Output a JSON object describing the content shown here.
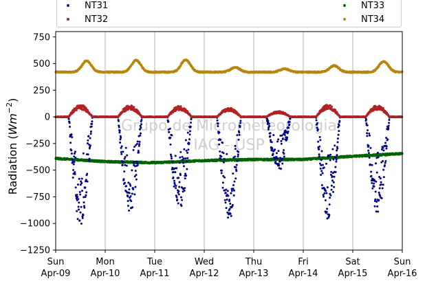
{
  "chart_data": {
    "type": "scatter",
    "title": "",
    "xlabel": "",
    "ylabel": "Radiation ($Wm^{-2}$)",
    "ylim": [
      -1250,
      800
    ],
    "yticks": [
      -1250,
      -1000,
      -750,
      -500,
      -250,
      0,
      250,
      500,
      750
    ],
    "xlim": [
      "2017-04-09",
      "2017-04-16"
    ],
    "xticks": [
      {
        "day": "Sun",
        "date": "Apr-09"
      },
      {
        "day": "Mon",
        "date": "Apr-10"
      },
      {
        "day": "Tue",
        "date": "Apr-11"
      },
      {
        "day": "Wed",
        "date": "Apr-12"
      },
      {
        "day": "Thu",
        "date": "Apr-13"
      },
      {
        "day": "Fri",
        "date": "Apr-14"
      },
      {
        "day": "Sat",
        "date": "Apr-15"
      },
      {
        "day": "Sun",
        "date": "Apr-16"
      }
    ],
    "grid": "vertical",
    "legend_position": "top",
    "watermark": [
      "Grupo de Micrometeorologia",
      "IAG - USP"
    ],
    "series": [
      {
        "name": "NT31",
        "color": "#00008b",
        "night_level": 0,
        "daily_min": [
          {
            "date": "2017-04-09",
            "min": -1030
          },
          {
            "date": "2017-04-10",
            "min": -910
          },
          {
            "date": "2017-04-11",
            "min": -880
          },
          {
            "date": "2017-04-12",
            "min": -1000
          },
          {
            "date": "2017-04-13",
            "min": -520
          },
          {
            "date": "2017-04-14",
            "min": -970
          },
          {
            "date": "2017-04-15",
            "min": -900
          }
        ]
      },
      {
        "name": "NT32",
        "color": "#b22222",
        "night_level": 0,
        "daily_max": [
          {
            "date": "2017-04-09",
            "max": 115
          },
          {
            "date": "2017-04-10",
            "max": 110
          },
          {
            "date": "2017-04-11",
            "max": 105
          },
          {
            "date": "2017-04-12",
            "max": 85
          },
          {
            "date": "2017-04-13",
            "max": 55
          },
          {
            "date": "2017-04-14",
            "max": 115
          },
          {
            "date": "2017-04-15",
            "max": 110
          }
        ]
      },
      {
        "name": "NT33",
        "color": "#006400",
        "values": [
          {
            "date": "2017-04-09",
            "value": -390
          },
          {
            "date": "2017-04-10",
            "value": -420
          },
          {
            "date": "2017-04-11",
            "value": -430
          },
          {
            "date": "2017-04-12",
            "value": -410
          },
          {
            "date": "2017-04-13",
            "value": -400
          },
          {
            "date": "2017-04-14",
            "value": -400
          },
          {
            "date": "2017-04-15",
            "value": -370
          },
          {
            "date": "2017-04-16",
            "value": -345
          }
        ]
      },
      {
        "name": "NT34",
        "color": "#b8860b",
        "night_level": 420,
        "daily_max": [
          {
            "date": "2017-04-09",
            "max": 525
          },
          {
            "date": "2017-04-10",
            "max": 530
          },
          {
            "date": "2017-04-11",
            "max": 535
          },
          {
            "date": "2017-04-12",
            "max": 465
          },
          {
            "date": "2017-04-13",
            "max": 450
          },
          {
            "date": "2017-04-14",
            "max": 480
          },
          {
            "date": "2017-04-15",
            "max": 520
          }
        ]
      }
    ]
  }
}
